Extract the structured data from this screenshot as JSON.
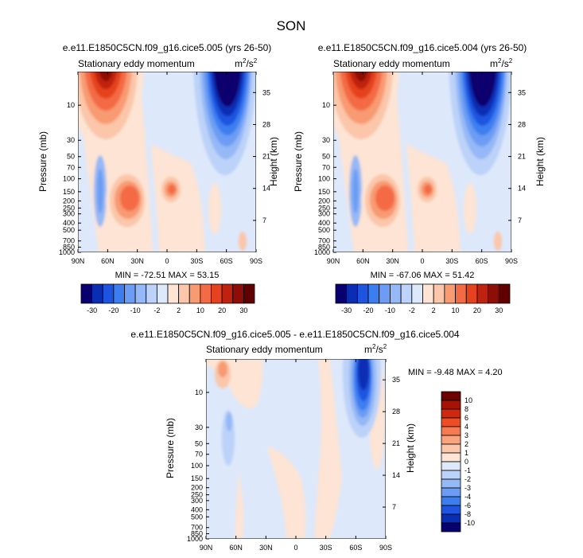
{
  "figure": {
    "title": "SON"
  },
  "chart_data": [
    {
      "type": "heatmap",
      "title": "e.e11.E1850C5CN.f09_g16.cice5.005 (yrs 26-50)",
      "subtitle_left": "Stationary eddy momentum",
      "units": "m²/s²",
      "units_base": "m",
      "units_mid": "2",
      "units_sep": "/s",
      "units_exp": "2",
      "xlabel": "",
      "ylabel": "Pressure (mb)",
      "ylabel_right": "Height (km)",
      "x_ticks": [
        "90N",
        "60N",
        "30N",
        "0",
        "30S",
        "60S",
        "90S"
      ],
      "y_ticks": [
        "10",
        "30",
        "50",
        "70",
        "100",
        "150",
        "200",
        "250",
        "300",
        "400",
        "500",
        "700",
        "850",
        "1000"
      ],
      "y_ticks_right": [
        "35",
        "28",
        "21",
        "14",
        "7"
      ],
      "stats": "MIN = -72.51  MAX = 53.15",
      "min": -72.51,
      "max": 53.15,
      "colorbar_labels": [
        "-30",
        "-20",
        "-10",
        "-2",
        "2",
        "10",
        "20",
        "30"
      ]
    },
    {
      "type": "heatmap",
      "title": "e.e11.E1850C5CN.f09_g16.cice5.004 (yrs 26-50)",
      "subtitle_left": "Stationary eddy momentum",
      "units": "m²/s²",
      "units_base": "m",
      "units_mid": "2",
      "units_sep": "/s",
      "units_exp": "2",
      "xlabel": "",
      "ylabel": "Pressure (mb)",
      "ylabel_right": "Height (km)",
      "x_ticks": [
        "90N",
        "60N",
        "30N",
        "0",
        "30S",
        "60S",
        "90S"
      ],
      "y_ticks": [
        "10",
        "30",
        "50",
        "70",
        "100",
        "150",
        "200",
        "250",
        "300",
        "400",
        "500",
        "700",
        "850",
        "1000"
      ],
      "y_ticks_right": [
        "35",
        "28",
        "21",
        "14",
        "7"
      ],
      "stats": "MIN = -67.06  MAX = 51.42",
      "min": -67.06,
      "max": 51.42,
      "colorbar_labels": [
        "-30",
        "-20",
        "-10",
        "-2",
        "2",
        "10",
        "20",
        "30"
      ]
    },
    {
      "type": "heatmap",
      "title": "e.e11.E1850C5CN.f09_g16.cice5.005 - e.e11.E1850C5CN.f09_g16.cice5.004",
      "subtitle_left": "Stationary eddy momentum",
      "units": "m²/s²",
      "units_base": "m",
      "units_mid": "2",
      "units_sep": "/s",
      "units_exp": "2",
      "xlabel": "",
      "ylabel": "Pressure (mb)",
      "ylabel_right": "Height (km)",
      "x_ticks": [
        "90N",
        "60N",
        "30N",
        "0",
        "30S",
        "60S",
        "90S"
      ],
      "y_ticks": [
        "10",
        "30",
        "50",
        "70",
        "100",
        "150",
        "200",
        "250",
        "300",
        "400",
        "500",
        "700",
        "850",
        "1000"
      ],
      "y_ticks_right": [
        "35",
        "28",
        "21",
        "14",
        "7"
      ],
      "stats": "MIN = -9.48  MAX =  4.20",
      "min": -9.48,
      "max": 4.2,
      "colorbar_labels": [
        "10",
        "8",
        "6",
        "4",
        "3",
        "2",
        "1",
        "0",
        "-1",
        "-2",
        "-3",
        "-4",
        "-6",
        "-8",
        "-10"
      ]
    }
  ],
  "palette": {
    "horizontal": [
      "#08006e",
      "#0a2db4",
      "#1f54e0",
      "#3c7ef0",
      "#6c9cf3",
      "#95b8f6",
      "#bcd2f8",
      "#dde8fb",
      "#fde4d4",
      "#fbc6a9",
      "#f89a72",
      "#f36b45",
      "#e5421f",
      "#bf2310",
      "#8d0e06",
      "#600000"
    ],
    "vertical": [
      "#6e0000",
      "#a51206",
      "#d0280f",
      "#ed4d22",
      "#f67a4f",
      "#f9a47d",
      "#fbc6a9",
      "#fde4d4",
      "#dde8fb",
      "#bcd2f8",
      "#95b8f6",
      "#6c9cf3",
      "#3c7ef0",
      "#1f54e0",
      "#0a2db4",
      "#08006e"
    ]
  }
}
